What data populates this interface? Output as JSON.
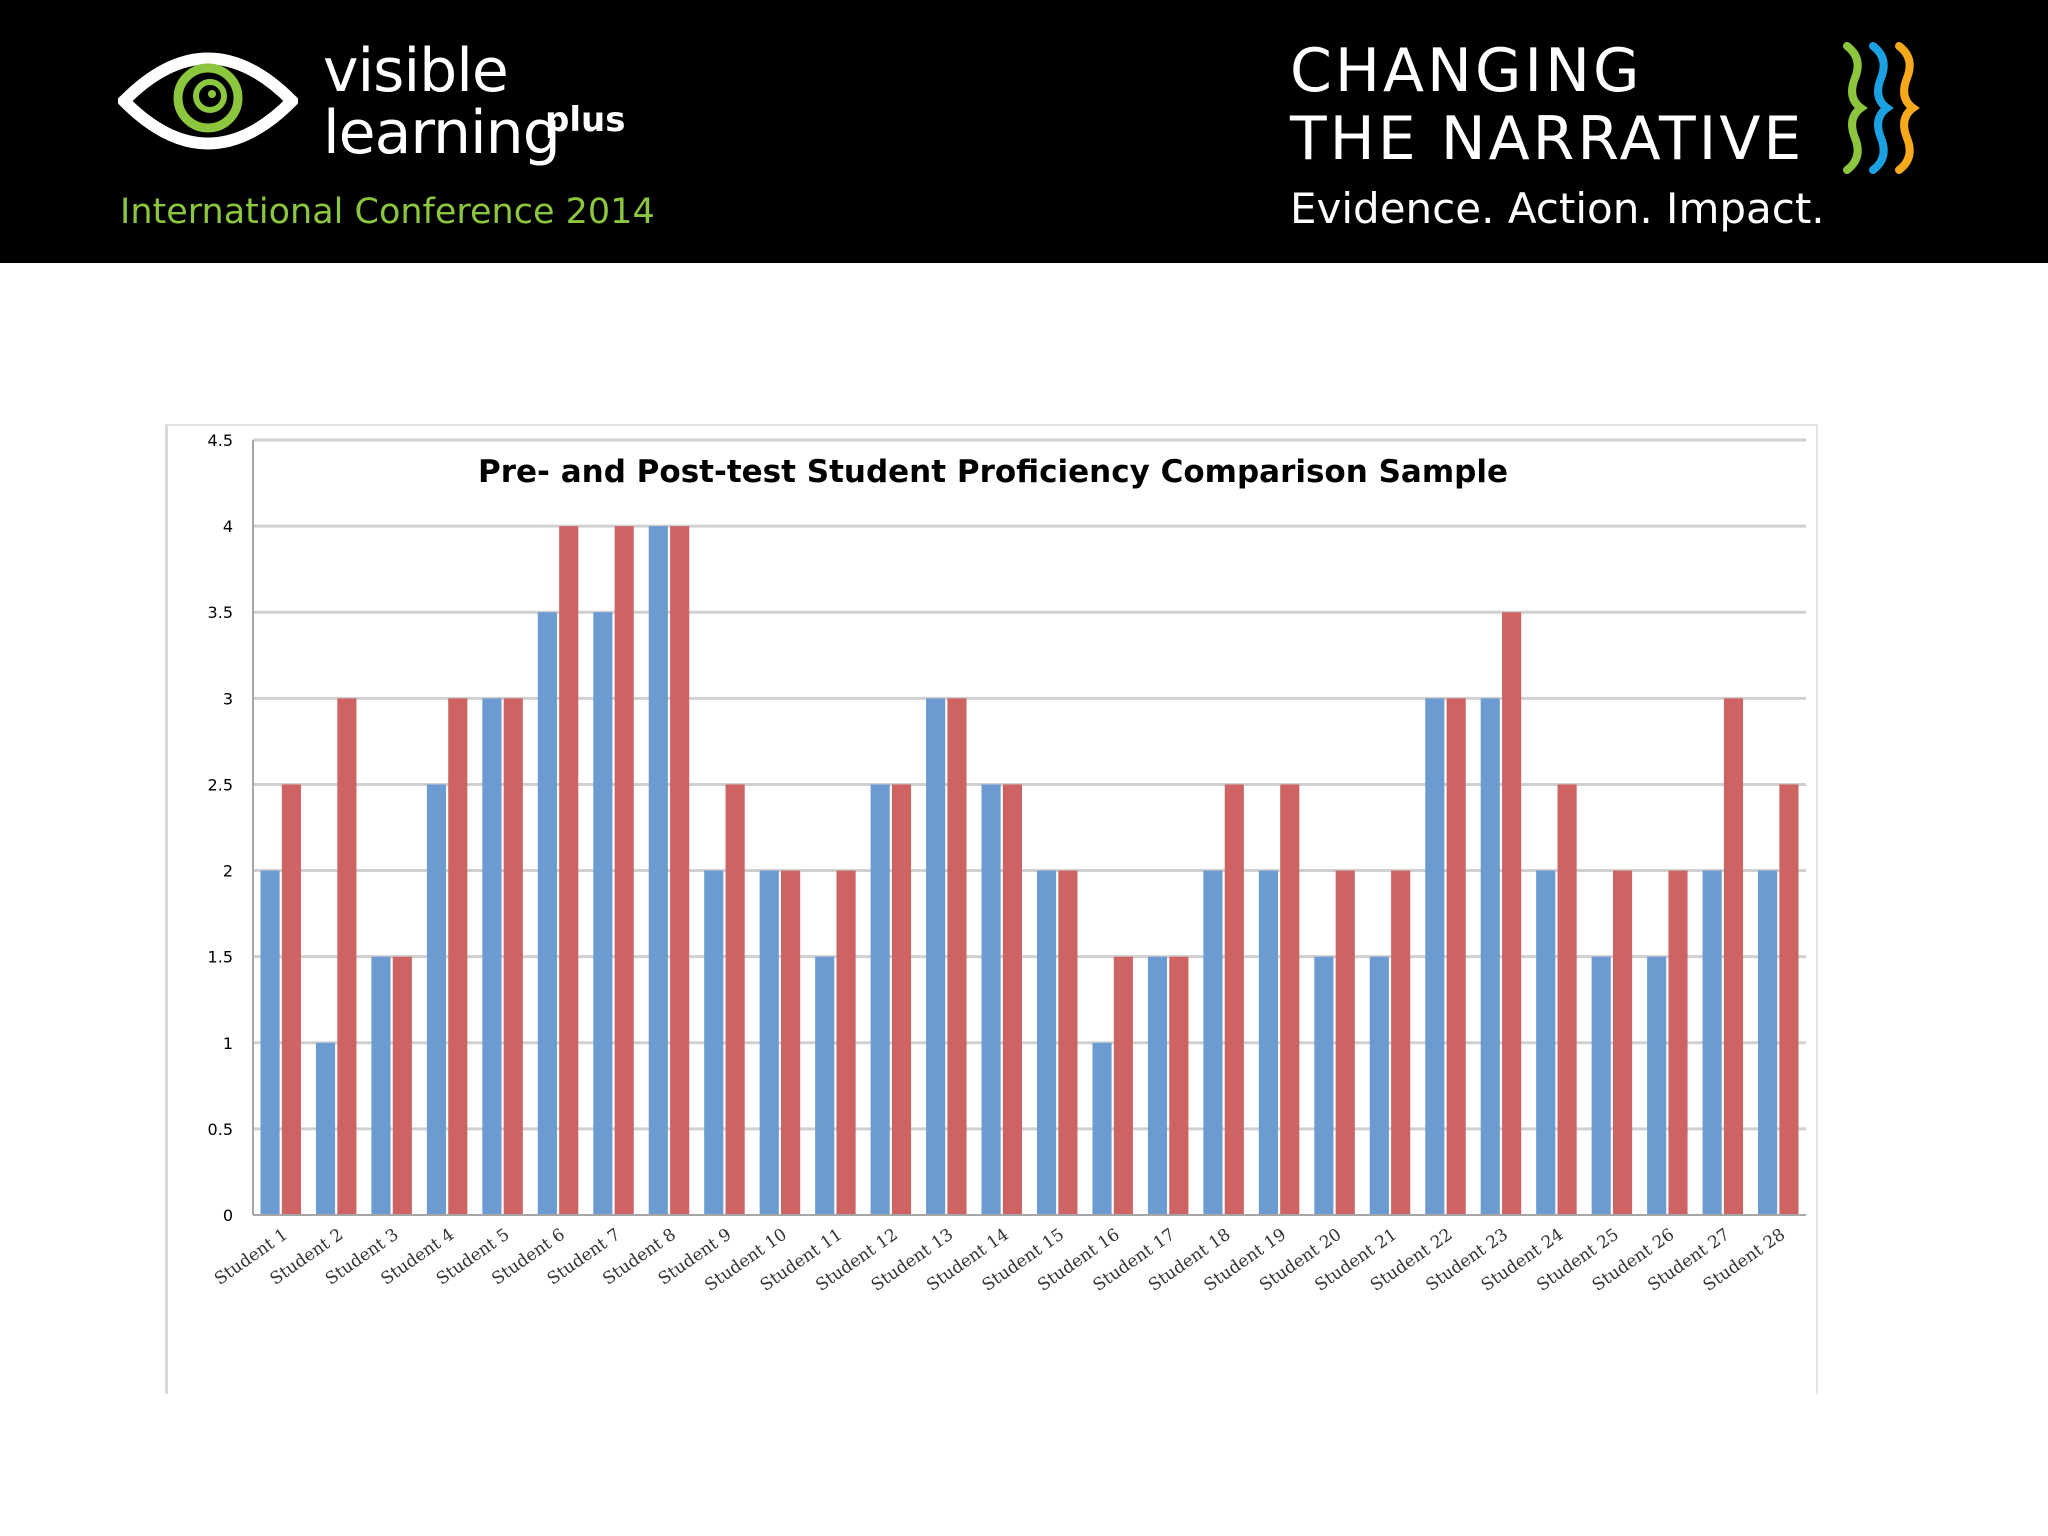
{
  "header": {
    "logo_line1": "visible",
    "logo_line2": "learning",
    "logo_suffix": "plus",
    "conference": "International Conference 2014",
    "title_line1": "CHANGING",
    "title_line2": "THE NARRATIVE",
    "tagline": "Evidence. Action. Impact.",
    "colors": {
      "banner": "#000000",
      "conference_text": "#8cc63f",
      "eye_green": "#8cc63f",
      "mark_green": "#8cc63f",
      "mark_blue": "#1ba1e2",
      "mark_yellow": "#f7a81b"
    }
  },
  "chart_data": {
    "type": "bar",
    "title": "Pre- and Post-test Student Proficiency Comparison Sample",
    "xlabel": "",
    "ylabel": "",
    "ylim": [
      0,
      4.5
    ],
    "yticks": [
      "0",
      "0.5",
      "1",
      "1.5",
      "2",
      "2.5",
      "3",
      "3.5",
      "4",
      "4.5"
    ],
    "grid": true,
    "legend": "none",
    "categories": [
      "Student 1",
      "Student 2",
      "Student 3",
      "Student 4",
      "Student 5",
      "Student 6",
      "Student 7",
      "Student 8",
      "Student 9",
      "Student 10",
      "Student 11",
      "Student 12",
      "Student 13",
      "Student 14",
      "Student 15",
      "Student 16",
      "Student 17",
      "Student 18",
      "Student 19",
      "Student 20",
      "Student 21",
      "Student 22",
      "Student 23",
      "Student 24",
      "Student 25",
      "Student 26",
      "Student 27",
      "Student 28"
    ],
    "series": [
      {
        "color": "#6b9bd1",
        "values": [
          2,
          1,
          1.5,
          2.5,
          3,
          3.5,
          3.5,
          4,
          2,
          2,
          1.5,
          2.5,
          3,
          2.5,
          2,
          1,
          1.5,
          2,
          2,
          1.5,
          1.5,
          3,
          3,
          2,
          1.5,
          1.5,
          2,
          2
        ]
      },
      {
        "color": "#cd6363",
        "values": [
          2.5,
          3,
          1.5,
          3,
          3,
          4,
          4,
          4,
          2.5,
          2,
          2,
          2.5,
          3,
          2.5,
          2,
          1.5,
          1.5,
          2.5,
          2.5,
          2,
          2,
          3,
          3.5,
          2.5,
          2,
          2,
          3,
          2.5
        ]
      }
    ]
  }
}
